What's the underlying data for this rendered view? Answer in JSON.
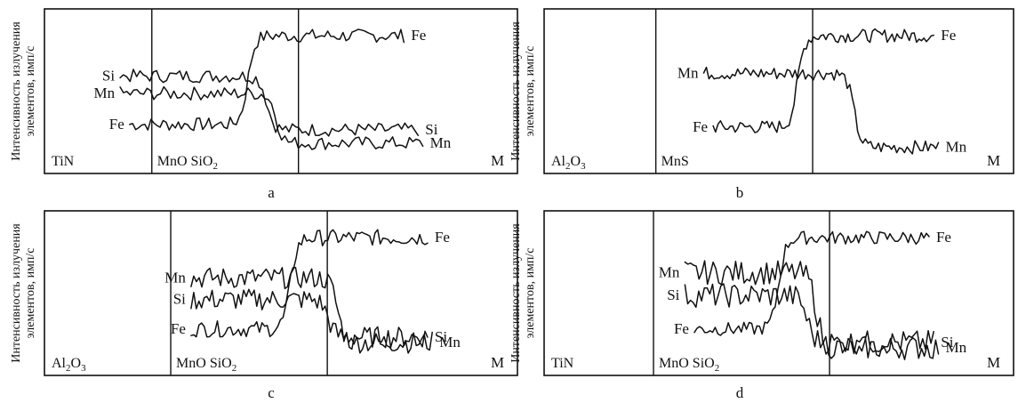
{
  "y_axis_label": [
    "Интенсивность излучения",
    "элементов, имп/с"
  ],
  "chart_data": [
    {
      "type": "line",
      "title": "a",
      "x_axis_end_label": "M",
      "region_labels": [
        {
          "main": "TiN",
          "sub": ""
        },
        {
          "main": "MnO SiO",
          "sub": "2"
        }
      ],
      "series": [
        {
          "name": "Fe",
          "end_label": "Fe",
          "level_left": 0.22,
          "level_right": 0.88,
          "transition": 0.43,
          "noise": 0.05,
          "x_start": 0.18,
          "x_end": 0.76
        },
        {
          "name": "Si",
          "end_label": "Si",
          "level_left": 0.58,
          "level_right": 0.18,
          "transition": 0.47,
          "noise": 0.05,
          "x_start": 0.16,
          "x_end": 0.79
        },
        {
          "name": "Mn",
          "end_label": "Mn",
          "level_left": 0.45,
          "level_right": 0.08,
          "transition": 0.49,
          "noise": 0.05,
          "x_start": 0.16,
          "x_end": 0.8
        }
      ]
    },
    {
      "type": "line",
      "title": "b",
      "x_axis_end_label": "M",
      "region_labels": [
        {
          "main": "Al",
          "sub": "2",
          "tail": "O",
          "sub2": "3"
        },
        {
          "main": "MnS",
          "sub": ""
        }
      ],
      "series": [
        {
          "name": "Fe",
          "end_label": "Fe",
          "level_left": 0.2,
          "level_right": 0.88,
          "transition": 0.54,
          "noise": 0.05,
          "x_start": 0.36,
          "x_end": 0.83
        },
        {
          "name": "Mn",
          "end_label": "Mn",
          "level_left": 0.6,
          "level_right": 0.05,
          "transition": 0.66,
          "noise": 0.05,
          "x_start": 0.34,
          "x_end": 0.84
        }
      ]
    },
    {
      "type": "line",
      "title": "c",
      "x_axis_end_label": "M",
      "region_labels": [
        {
          "main": "Al",
          "sub": "2",
          "tail": "O",
          "sub2": "3"
        },
        {
          "main": "MnO SiO",
          "sub": "2"
        }
      ],
      "series": [
        {
          "name": "Fe",
          "end_label": "Fe",
          "level_left": 0.2,
          "level_right": 0.88,
          "transition": 0.52,
          "noise": 0.06,
          "x_start": 0.31,
          "x_end": 0.81
        },
        {
          "name": "Mn",
          "end_label": "Mn",
          "level_left": 0.58,
          "level_right": 0.1,
          "transition": 0.62,
          "noise": 0.08,
          "x_start": 0.31,
          "x_end": 0.82
        },
        {
          "name": "Si",
          "end_label": "Si",
          "level_left": 0.42,
          "level_right": 0.14,
          "transition": 0.6,
          "noise": 0.08,
          "x_start": 0.31,
          "x_end": 0.81
        }
      ]
    },
    {
      "type": "line",
      "title": "d",
      "x_axis_end_label": "M",
      "region_labels": [
        {
          "main": "TiN",
          "sub": ""
        },
        {
          "main": "MnO SiO",
          "sub": "2"
        }
      ],
      "series": [
        {
          "name": "Fe",
          "end_label": "Fe",
          "level_left": 0.2,
          "level_right": 0.88,
          "transition": 0.5,
          "noise": 0.05,
          "x_start": 0.32,
          "x_end": 0.82
        },
        {
          "name": "Mn",
          "end_label": "Mn",
          "level_left": 0.62,
          "level_right": 0.06,
          "transition": 0.58,
          "noise": 0.09,
          "x_start": 0.3,
          "x_end": 0.84
        },
        {
          "name": "Si",
          "end_label": "Si",
          "level_left": 0.45,
          "level_right": 0.1,
          "transition": 0.56,
          "noise": 0.09,
          "x_start": 0.3,
          "x_end": 0.83
        }
      ]
    }
  ]
}
